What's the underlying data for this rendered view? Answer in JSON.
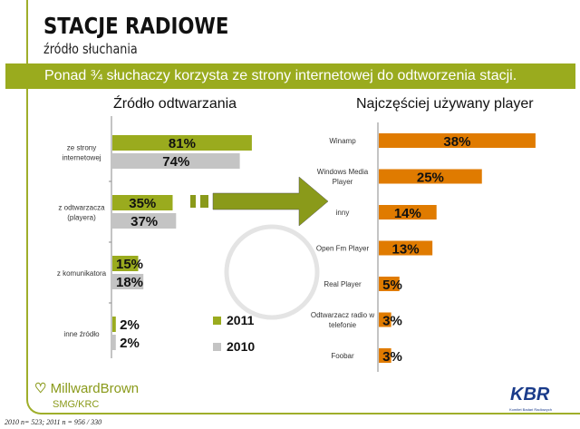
{
  "header": {
    "title": "STACJE RADIOWE",
    "subtitle": "źródło słuchania",
    "banner": "Ponad ¾ słuchaczy korzysta ze strony internetowej do odtworzenia stacji."
  },
  "colors": {
    "olive": "#9aab1e",
    "grey": "#c4c4c4",
    "orange": "#e07b00"
  },
  "chart_data": [
    {
      "type": "bar",
      "orientation": "horizontal",
      "title": "Źródło odtwarzania",
      "categories": [
        "ze strony internetowej",
        "z odtwarzacza (playera)",
        "z komunikatora",
        "inne źródło"
      ],
      "series": [
        {
          "name": "2011",
          "values": [
            81,
            35,
            15,
            2
          ]
        },
        {
          "name": "2010",
          "values": [
            74,
            37,
            18,
            2
          ]
        }
      ],
      "unit": "%",
      "legend": "bottom-right"
    },
    {
      "type": "bar",
      "orientation": "horizontal",
      "title": "Najczęściej używany player",
      "categories": [
        "Winamp",
        "Windows Media Player",
        "inny",
        "Open Fm Player",
        "Real Player",
        "Odtwarzacz radio w telefonie",
        "Foobar"
      ],
      "values": [
        38,
        25,
        14,
        13,
        5,
        3,
        3
      ],
      "unit": "%"
    }
  ],
  "footer": {
    "logo_left": "MillwardBrown",
    "logo_left_sub": "SMG/KRC",
    "logo_right": "KBR",
    "logo_right_sub": "Komitet Badań Radiowych",
    "note": "2010 n= 523; 2011 n = 956 / 330"
  }
}
